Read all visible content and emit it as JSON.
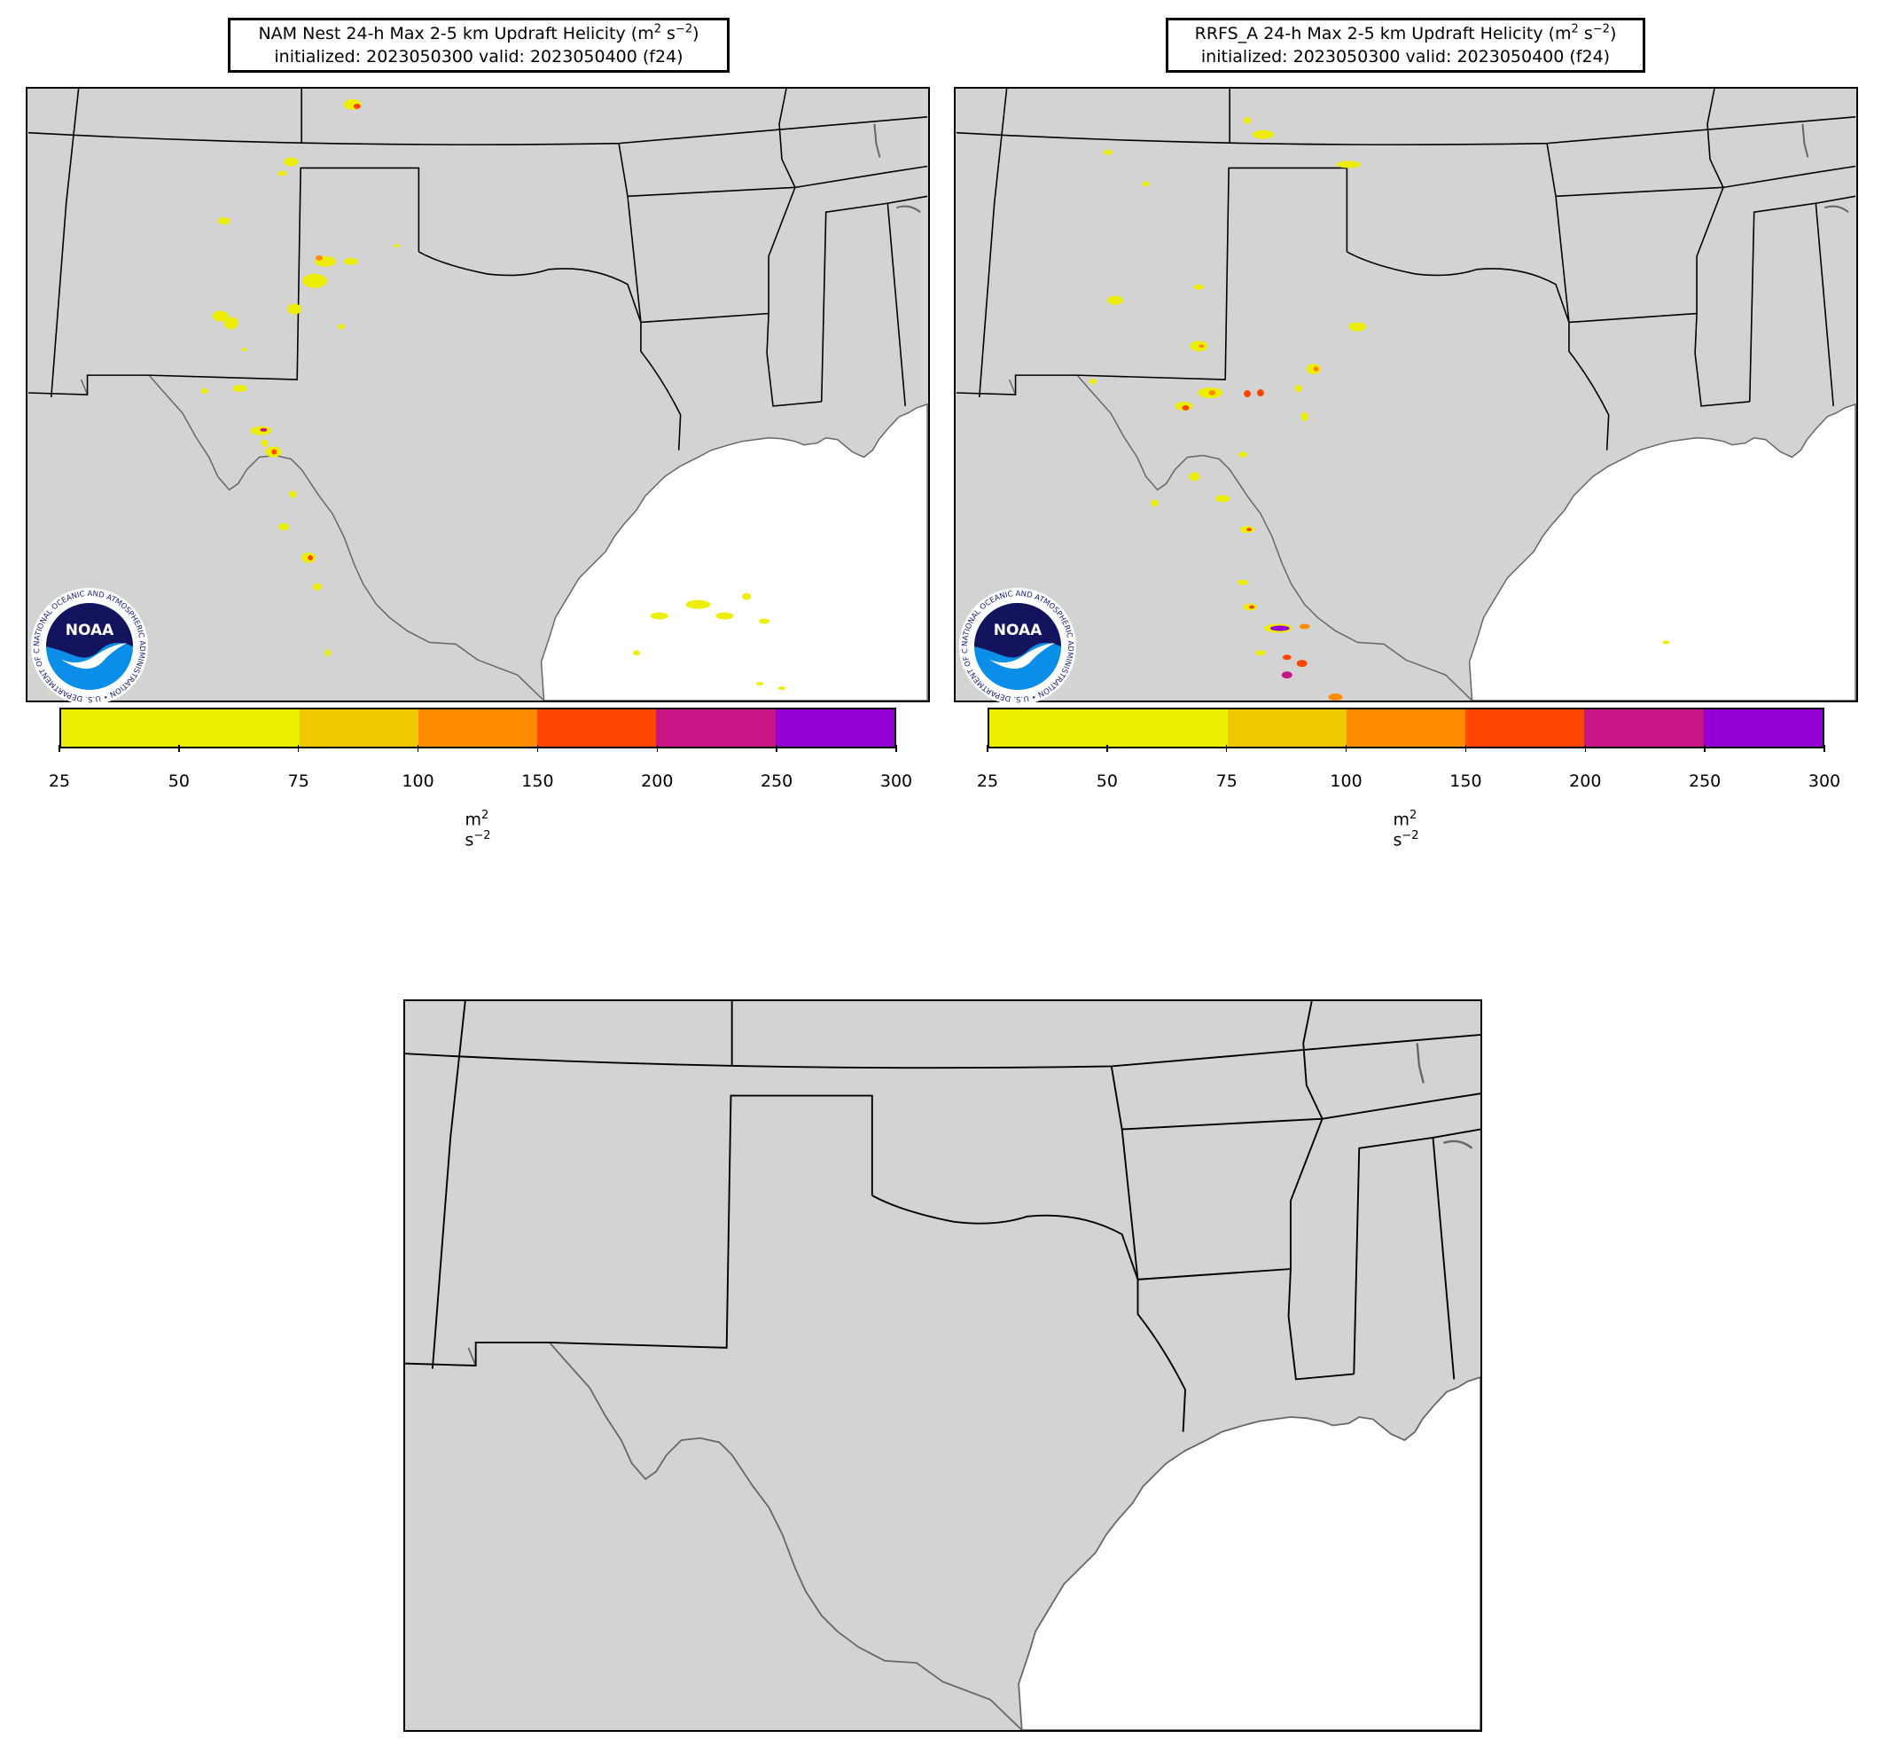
{
  "panels": [
    {
      "id": "nam",
      "title_line1": "NAM Nest 24-h Max 2-5 km Updraft Helicity (m",
      "title_sup1": "2",
      "title_mid": " s",
      "title_sup2": "−2",
      "title_end": ")",
      "title_line2": "initialized: 2023050300 valid: 2023050400 (f24)",
      "has_colorbar": true,
      "has_logo": true
    },
    {
      "id": "rrfs",
      "title_line1": "RRFS_A 24-h Max 2-5 km Updraft Helicity (m",
      "title_sup1": "2",
      "title_mid": " s",
      "title_sup2": "−2",
      "title_end": ")",
      "title_line2": "initialized: 2023050300 valid: 2023050400 (f24)",
      "has_colorbar": true,
      "has_logo": true
    },
    {
      "id": "diff",
      "has_colorbar": false,
      "has_logo": false
    }
  ],
  "colorbar": {
    "ticks": [
      "25",
      "50",
      "75",
      "100",
      "150",
      "200",
      "250",
      "300"
    ],
    "label_base": "m",
    "label_sup1": "2",
    "label_mid": " s",
    "label_sup2": "−2",
    "segments": [
      {
        "from": 25,
        "to": 75,
        "color": "#eeee00"
      },
      {
        "from": 75,
        "to": 100,
        "color": "#eec900"
      },
      {
        "from": 100,
        "to": 150,
        "color": "#ff8c00"
      },
      {
        "from": 150,
        "to": 200,
        "color": "#ff4500"
      },
      {
        "from": 200,
        "to": 250,
        "color": "#c71585"
      },
      {
        "from": 250,
        "to": 300,
        "color": "#9400d3"
      }
    ]
  },
  "logo": {
    "text": "NOAA",
    "ring_text": "NATIONAL OCEANIC AND ATMOSPHERIC ADMINISTRATION • U.S. DEPARTMENT OF COMMERCE"
  },
  "colors": {
    "land": "#d3d3d3",
    "water": "#ffffff",
    "border": "#000000",
    "coast": "#666666"
  }
}
